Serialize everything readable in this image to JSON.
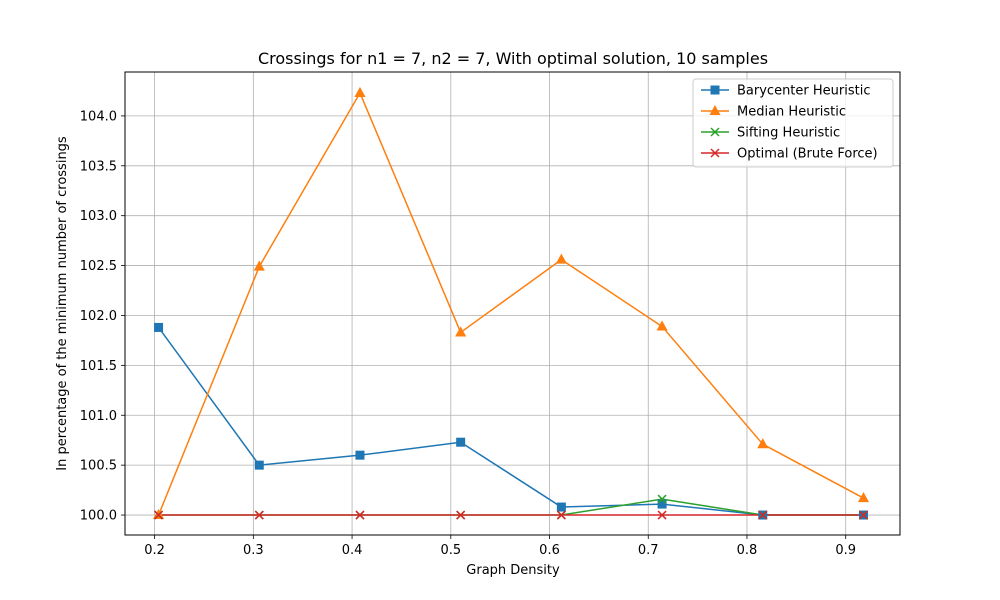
{
  "chart_data": {
    "type": "line",
    "title": "Crossings for n1 = 7, n2 = 7, With optimal solution, 10 samples",
    "xlabel": "Graph Density",
    "ylabel": "In percentage of the minimum number of crossings",
    "xlim": [
      0.17,
      0.955
    ],
    "ylim": [
      99.8,
      104.44
    ],
    "xticks": [
      0.2,
      0.3,
      0.4,
      0.5,
      0.6,
      0.7,
      0.8,
      0.9
    ],
    "xtick_labels": [
      "0.2",
      "0.3",
      "0.4",
      "0.5",
      "0.6",
      "0.7",
      "0.8",
      "0.9"
    ],
    "yticks": [
      100.0,
      100.5,
      101.0,
      101.5,
      102.0,
      102.5,
      103.0,
      103.5,
      104.0
    ],
    "ytick_labels": [
      "100.0",
      "100.5",
      "101.0",
      "101.5",
      "102.0",
      "102.5",
      "103.0",
      "103.5",
      "104.0"
    ],
    "grid": true,
    "legend_position": "upper-right",
    "x": [
      0.204,
      0.306,
      0.408,
      0.51,
      0.612,
      0.714,
      0.816,
      0.918
    ],
    "series": [
      {
        "name": "Barycenter Heuristic",
        "color": "#1f77b4",
        "marker": "square",
        "values": [
          101.88,
          100.5,
          100.6,
          100.73,
          100.08,
          100.11,
          100.0,
          100.0
        ]
      },
      {
        "name": "Median Heuristic",
        "color": "#ff7f0e",
        "marker": "triangle-up",
        "values": [
          100.0,
          102.49,
          104.23,
          101.83,
          102.56,
          101.89,
          100.71,
          100.17
        ]
      },
      {
        "name": "Sifting Heuristic",
        "color": "#2ca02c",
        "marker": "x",
        "values": [
          100.0,
          100.0,
          100.0,
          100.0,
          100.0,
          100.16,
          100.0,
          100.0
        ]
      },
      {
        "name": "Optimal (Brute Force)",
        "color": "#d62728",
        "marker": "x",
        "values": [
          100.0,
          100.0,
          100.0,
          100.0,
          100.0,
          100.0,
          100.0,
          100.0
        ]
      }
    ]
  }
}
